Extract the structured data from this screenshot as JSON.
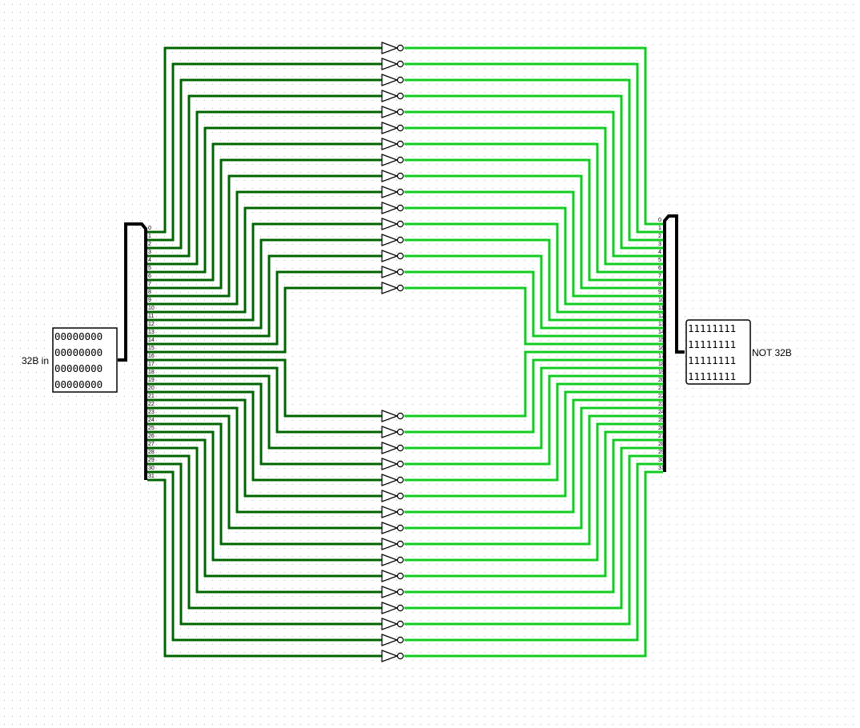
{
  "canvas": {
    "background": "#ffffff",
    "grid_dots": true,
    "grid_dot_color": "#b0b0b0"
  },
  "input_pin": {
    "label": "32B in",
    "rows": [
      "00000000",
      "00000000",
      "00000000",
      "00000000"
    ]
  },
  "output_pin": {
    "label": "NOT 32B",
    "rows": [
      "11111111",
      "11111111",
      "11111111",
      "11111111"
    ]
  },
  "splitter_left": {
    "ticks": [
      "0",
      "1",
      "2",
      "3",
      "4",
      "5",
      "6",
      "7",
      "8",
      "9",
      "10",
      "11",
      "12",
      "13",
      "14",
      "15",
      "16",
      "17",
      "18",
      "19",
      "20",
      "21",
      "22",
      "23",
      "24",
      "25",
      "26",
      "27",
      "28",
      "29",
      "30",
      "31"
    ]
  },
  "splitter_right": {
    "ticks": [
      "0",
      "1",
      "2",
      "3",
      "4",
      "5",
      "6",
      "7",
      "8",
      "9",
      "10",
      "11",
      "12",
      "13",
      "14",
      "15",
      "16",
      "17",
      "18",
      "19",
      "20",
      "21",
      "22",
      "23",
      "24",
      "25",
      "26",
      "27",
      "28",
      "29",
      "30",
      "31"
    ]
  },
  "gates": {
    "type": "NOT",
    "count": 32,
    "input_wire_color": "#006400",
    "output_wire_color": "#11cc22"
  }
}
